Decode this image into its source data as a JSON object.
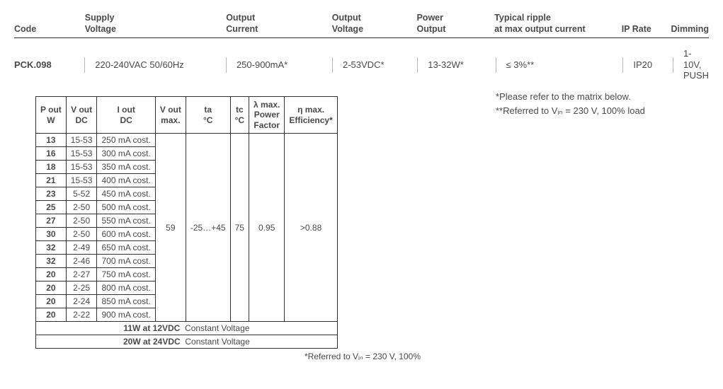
{
  "spec": {
    "headers": {
      "code": "Code",
      "supply": "Supply\nVoltage",
      "outcur": "Output\nCurrent",
      "outvolt": "Output\nVoltage",
      "power": "Power\nOutput",
      "ripple": "Typical ripple\nat max output current",
      "ip": "IP Rate",
      "dim": "Dimming"
    },
    "values": {
      "code": "PCK.098",
      "supply": "220-240VAC 50/60Hz",
      "outcur": "250-900mA*",
      "outvolt": "2-53VDC*",
      "power": "13-32W*",
      "ripple": "≤ 3%**",
      "ip": "IP20",
      "dim": "1-10V, PUSH"
    }
  },
  "footnotes": {
    "a": "*Please refer to the matrix below.",
    "b": "**Referred to Vᵢₙ = 230 V, 100% load"
  },
  "matrix": {
    "headers": {
      "pout": "P out\nW",
      "vout": "V out\nDC",
      "iout": "I out\nDC",
      "voutmax": "V out\nmax.",
      "ta": "ta\n°C",
      "tc": "tc\n°C",
      "pf": "λ max.\nPower\nFactor",
      "eff": "η max.\nEfficiency*"
    },
    "rows": [
      {
        "pout": "13",
        "vout": "15-53",
        "iout": "250 mA cost."
      },
      {
        "pout": "16",
        "vout": "15-53",
        "iout": "300 mA cost."
      },
      {
        "pout": "18",
        "vout": "15-53",
        "iout": "350 mA cost."
      },
      {
        "pout": "21",
        "vout": "15-53",
        "iout": "400 mA cost."
      },
      {
        "pout": "23",
        "vout": "5-52",
        "iout": "450 mA cost."
      },
      {
        "pout": "25",
        "vout": "2-50",
        "iout": "500 mA cost."
      },
      {
        "pout": "27",
        "vout": "2-50",
        "iout": "550 mA cost."
      },
      {
        "pout": "30",
        "vout": "2-50",
        "iout": "600 mA cost."
      },
      {
        "pout": "32",
        "vout": "2-49",
        "iout": "650 mA cost."
      },
      {
        "pout": "32",
        "vout": "2-46",
        "iout": "700 mA cost."
      },
      {
        "pout": "20",
        "vout": "2-27",
        "iout": "750 mA cost."
      },
      {
        "pout": "20",
        "vout": "2-25",
        "iout": "800 mA cost."
      },
      {
        "pout": "20",
        "vout": "2-24",
        "iout": "850 mA cost."
      },
      {
        "pout": "20",
        "vout": "2-22",
        "iout": "900 mA cost."
      }
    ],
    "merged": {
      "voutmax": "59",
      "ta": "-25…+45",
      "tc": "75",
      "pf": "0.95",
      "eff": ">0.88"
    },
    "cv_rows": [
      {
        "bold": "11W at 12VDC",
        "rest": "Constant Voltage"
      },
      {
        "bold": "20W at 24VDC",
        "rest": "Constant Voltage"
      }
    ],
    "footnote": "*Referred to Vᵢₙ = 230 V, 100%"
  }
}
